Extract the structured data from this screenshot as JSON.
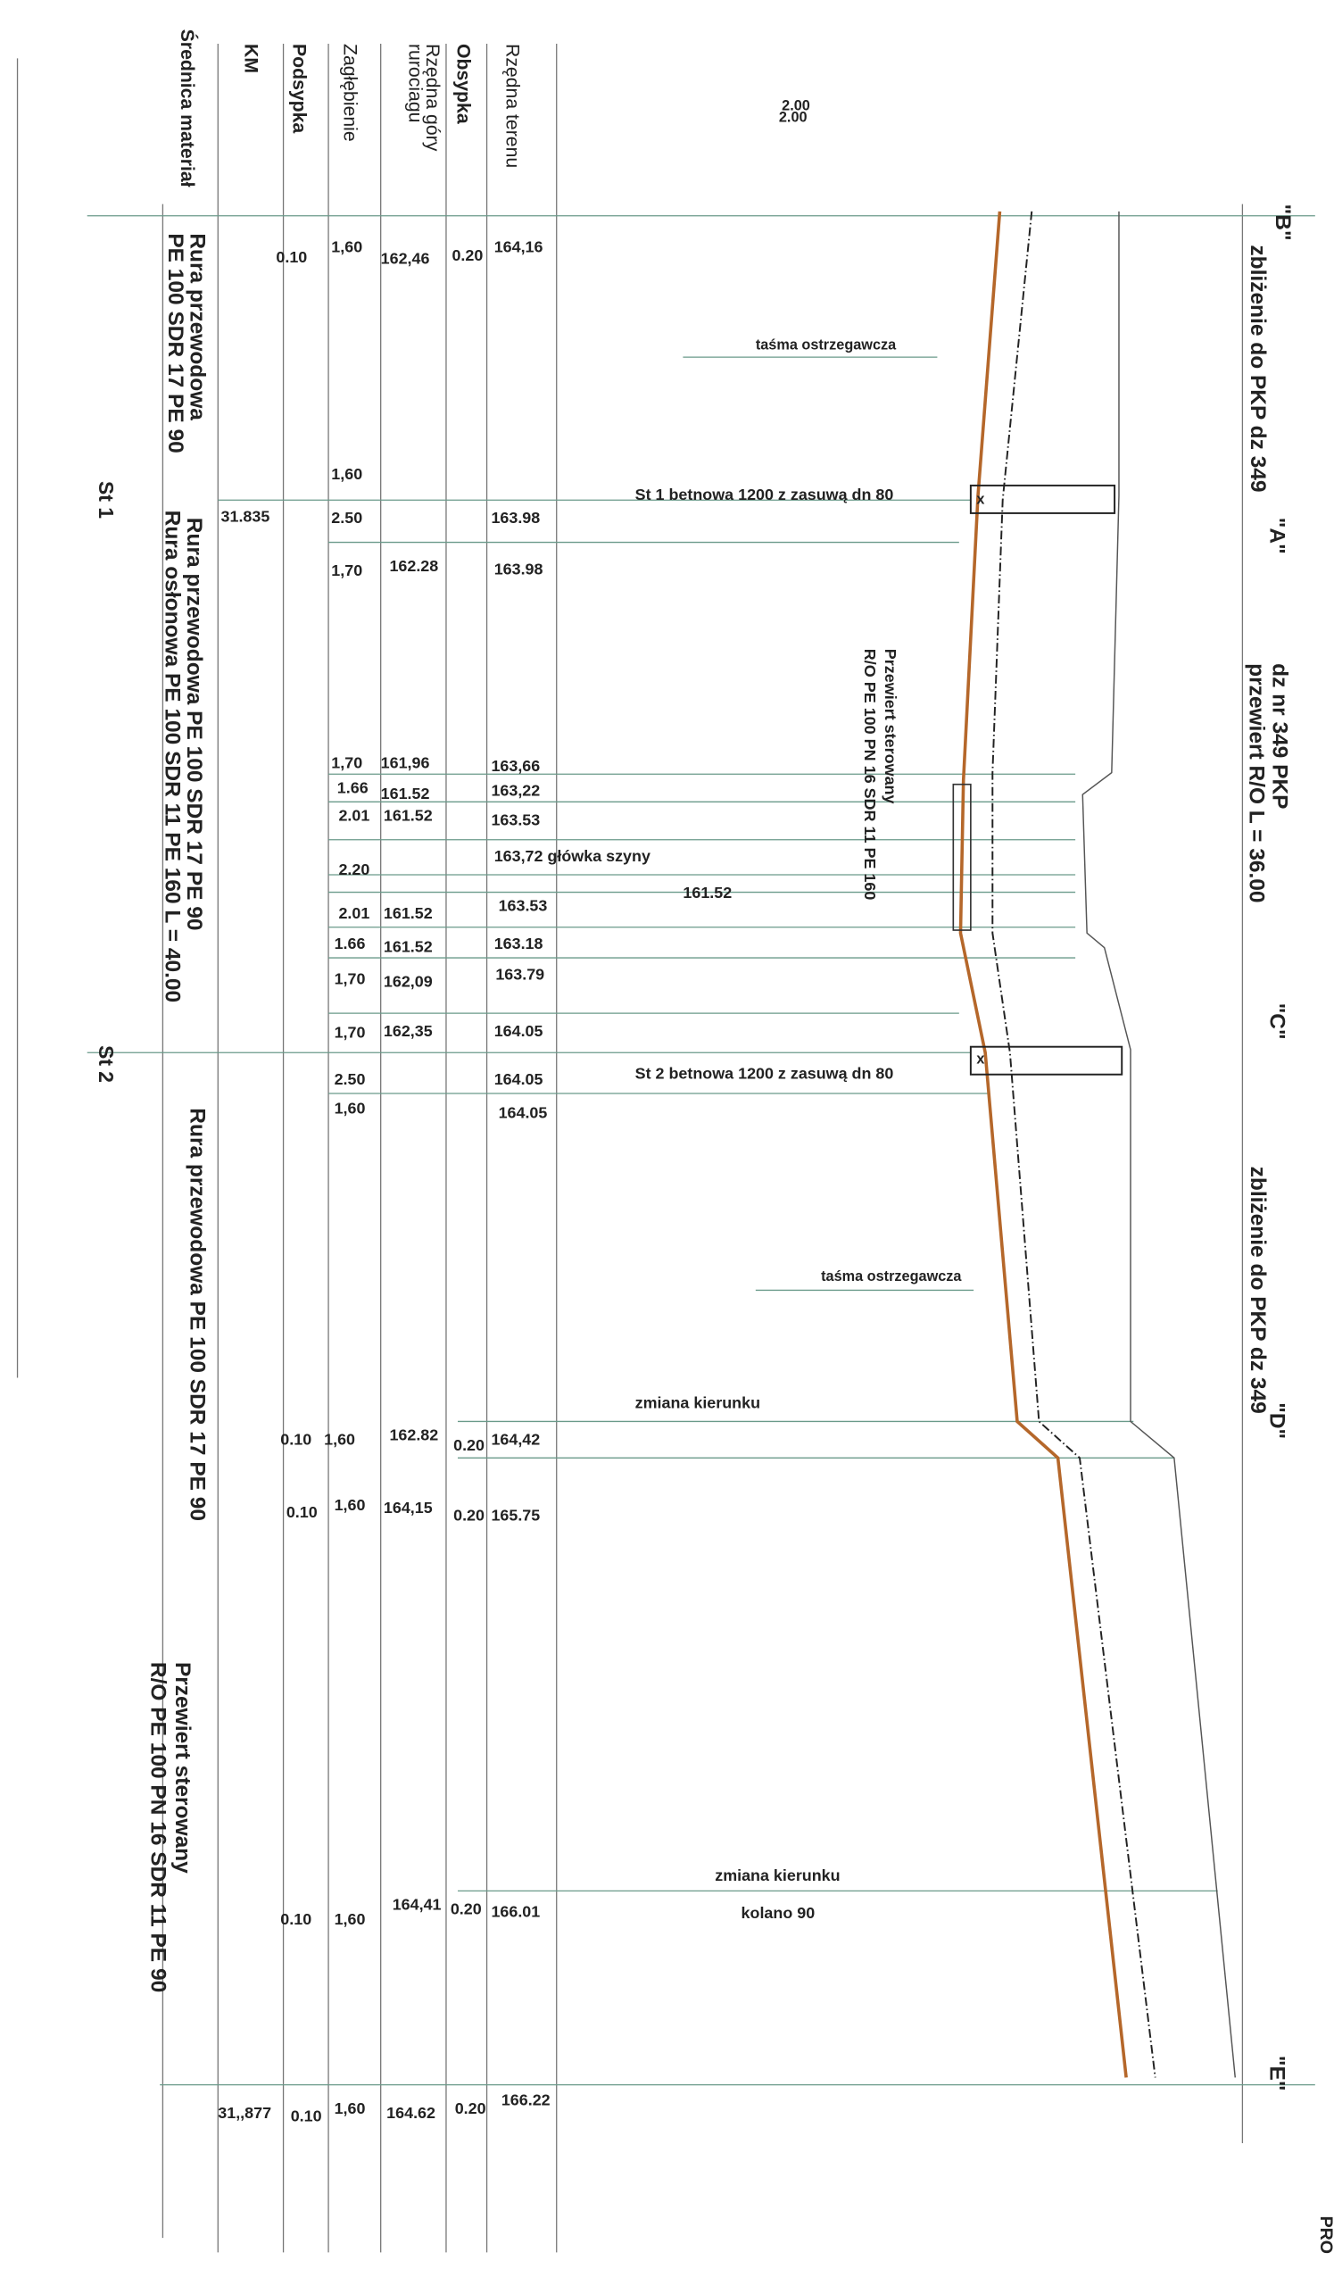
{
  "scale_label": "2.00",
  "row_headers": [
    "Rzędna terenu",
    "Obsypka",
    "Rzędna góry",
    "rurociagu",
    "Zagłębienie",
    "Podsypka",
    "KM",
    "Średnica materiał"
  ],
  "stations": [
    "\"B\"",
    "zbliżenie do PKP dz 349",
    "\"A\"",
    "dz nr 349 PKP",
    "przewiert R/O L = 36.00",
    "\"C\"",
    "zbliżenie do PKP dz 349",
    "\"D\"",
    "\"E\""
  ],
  "section_labels": [
    "Rura przewodowa",
    "PE 100 SDR 17 PE  90",
    "St 1",
    "Rura przewodowa PE 100 SDR 17 PE  90",
    "Rura osłonowa PE 100 SDR 11 PE 160 L = 40.00",
    "St 2",
    "Rura przewodowa PE 100 SDR 17 PE 90",
    "Przewiert sterowany",
    "R/O PE 100 PN 16 SDR 11 PE 90",
    "Przewiert sterowany",
    "R/O  PE 100 PN 16 SDR 11 PE 160",
    "PRO"
  ],
  "table_values": [
    "0.10",
    "1,60",
    "162,46",
    "0.20",
    "164,16",
    "1,60",
    "31.835",
    "2.50",
    "163.98",
    "1,70",
    "162.28",
    "163.98",
    "1,70",
    "161,96",
    "163,66",
    "1.66",
    "161.52",
    "163,22",
    "2.01",
    "161.52",
    "163.53",
    "2.20",
    "161.52",
    "2.01",
    "161.52",
    "163.53",
    "1.66",
    "161.52",
    "163.18",
    "1,70",
    "162,09",
    "163.79",
    "1,70",
    "162,35",
    "164.05",
    "2.50",
    "164.05",
    "1,60",
    "164.05",
    "0.10",
    "1,60",
    "162.82",
    "0.20",
    "164,42",
    "0.10",
    "1,60",
    "164,15",
    "0.20",
    "165.75",
    "0.10",
    "1,60",
    "164,41",
    "0.20",
    "166.01",
    "31,,877",
    "0.10",
    "1,60",
    "164.62",
    "0.20",
    "166.22"
  ],
  "annotations": [
    "taśma ostrzegawcza",
    "St 1 betnowa 1200 z zasuwą dn 80",
    "163,72 główka szyny",
    "St 2  betnowa 1200 z zasuwą dn 80",
    "taśma ostrzegawcza",
    "zmiana kierunku",
    "zmiana kierunku",
    "kolano 90"
  ]
}
